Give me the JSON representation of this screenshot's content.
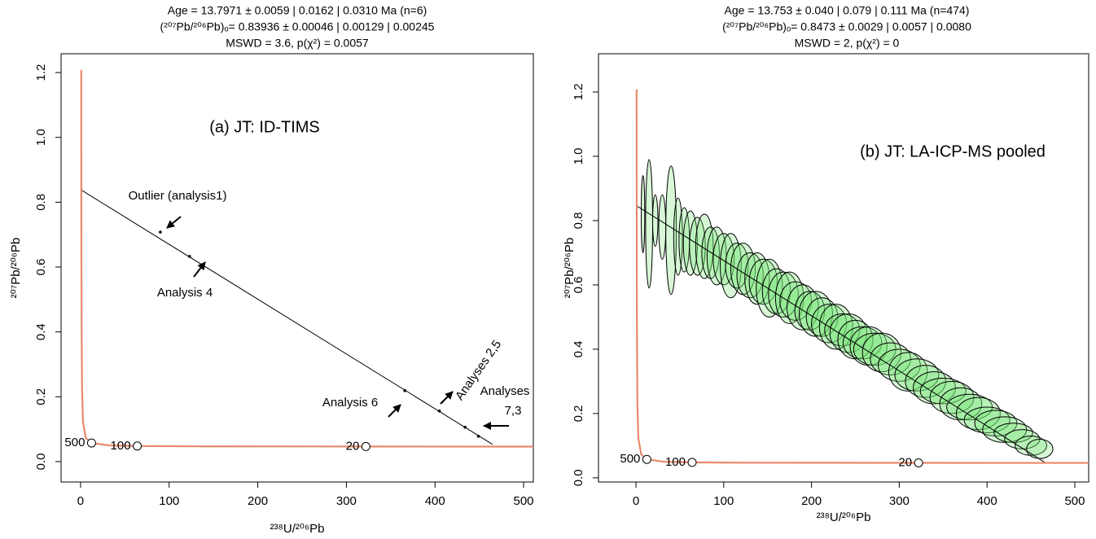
{
  "chart_data": [
    {
      "type": "concordia",
      "title": [
        "Age = 13.7971 ± 0.0059 | 0.0162 | 0.0310 Ma (n=6)",
        "(²⁰⁷Pb/²⁰⁶Pb)ₒ= 0.83936 ± 0.00046 | 0.00129 | 0.00245",
        "MSWD = 3.6, p(χ²) = 0.0057"
      ],
      "label": "(a) JT: ID-TIMS",
      "x_label": "²³⁸U/²⁰⁶Pb",
      "y_label": "²⁰⁷Pb/²⁰⁶Pb",
      "xlim": [
        -22,
        511
      ],
      "ylim": [
        -0.063,
        1.258
      ],
      "xticks": [
        0,
        100,
        200,
        300,
        400,
        500
      ],
      "yticks": [
        {
          "value": 0,
          "label": "0.0"
        },
        {
          "value": 0.2,
          "label": "0.2"
        },
        {
          "value": 0.4,
          "label": "0.4"
        },
        {
          "value": 0.6,
          "label": "0.6"
        },
        {
          "value": 0.8,
          "label": "0.8"
        },
        {
          "value": 1,
          "label": "1.0"
        },
        {
          "value": 1.2,
          "label": "1.2"
        }
      ],
      "concordia": {
        "color": "#e8896a",
        "x": [
          0.742,
          0.853,
          0.99,
          1.163,
          1.687,
          2.748,
          5.96,
          12.4,
          31.7,
          64,
          128.4,
          322,
          537
        ],
        "y": [
          1.208,
          0.846,
          0.597,
          0.425,
          0.2226,
          0.123,
          0.0726,
          0.0573,
          0.0501,
          0.048,
          0.047,
          0.0465,
          0.0463
        ]
      },
      "age_markers": {
        "ages": [
          500,
          100,
          20
        ],
        "x": [
          12.4,
          64,
          322
        ],
        "y": [
          0.0573,
          0.048,
          0.0465
        ]
      },
      "discordia": {
        "x": [
          0,
          465
        ],
        "y": [
          0.839,
          0.053
        ]
      },
      "points": {
        "x": [
          90,
          123,
          366,
          405,
          434,
          449
        ],
        "y": [
          0.708,
          0.633,
          0.219,
          0.156,
          0.106,
          0.078
        ]
      },
      "annotations": [
        "Outlier (analysis1)",
        "Analysis 4",
        "Analysis 6",
        "Analyses 2,5",
        "Analyses",
        "7,3"
      ]
    },
    {
      "type": "concordia",
      "title": [
        "Age = 13.753 ± 0.040 | 0.079 | 0.111 Ma (n=474)",
        "(²⁰⁷Pb/²⁰⁶Pb)ₒ= 0.8473 ± 0.0029 | 0.0057 | 0.0080",
        "MSWD = 2, p(χ²) = 0"
      ],
      "label": "(b) JT: LA-ICP-MS pooled",
      "x_label": "²³⁸U/²⁰⁶Pb",
      "y_label": "²⁰⁷Pb/²⁰⁶Pb",
      "xlim": [
        -42.7,
        515.8
      ],
      "ylim": [
        -0.013,
        1.319
      ],
      "xticks": [
        0,
        100,
        200,
        300,
        400,
        500
      ],
      "yticks": [
        {
          "value": 0,
          "label": "0.0"
        },
        {
          "value": 0.2,
          "label": "0.2"
        },
        {
          "value": 0.4,
          "label": "0.4"
        },
        {
          "value": 0.6,
          "label": "0.6"
        },
        {
          "value": 0.8,
          "label": "0.8"
        },
        {
          "value": 1,
          "label": "1.0"
        },
        {
          "value": 1.2,
          "label": "1.2"
        }
      ],
      "concordia": {
        "color": "#e8896a",
        "x": [
          0.742,
          0.853,
          0.99,
          1.163,
          1.687,
          2.748,
          5.96,
          12.4,
          31.7,
          64,
          128.4,
          322,
          537
        ],
        "y": [
          1.208,
          0.846,
          0.597,
          0.425,
          0.2226,
          0.123,
          0.0726,
          0.0573,
          0.0501,
          0.048,
          0.047,
          0.0465,
          0.0463
        ]
      },
      "age_markers": {
        "ages": [
          500,
          100,
          20
        ],
        "x": [
          12.4,
          64,
          322
        ],
        "y": [
          0.0573,
          0.048,
          0.0465
        ]
      },
      "discordia": {
        "x": [
          0,
          467
        ],
        "y": [
          0.8473,
          0.046
        ]
      },
      "ellipses": {
        "x": [
          8,
          15,
          22,
          30,
          40,
          48,
          55,
          62,
          70,
          78,
          85,
          92,
          100,
          108,
          115,
          122,
          130,
          138,
          145,
          152,
          160,
          168,
          175,
          182,
          190,
          198,
          205,
          212,
          220,
          228,
          235,
          242,
          250,
          258,
          265,
          272,
          280,
          290,
          300,
          310,
          320,
          330,
          340,
          350,
          360,
          370,
          380,
          390,
          400,
          410,
          420,
          430,
          440,
          450,
          460
        ],
        "y": [
          0.82,
          0.79,
          0.8,
          0.78,
          0.77,
          0.75,
          0.74,
          0.73,
          0.72,
          0.72,
          0.7,
          0.69,
          0.68,
          0.66,
          0.66,
          0.65,
          0.63,
          0.62,
          0.61,
          0.59,
          0.58,
          0.57,
          0.56,
          0.55,
          0.53,
          0.52,
          0.51,
          0.5,
          0.48,
          0.47,
          0.46,
          0.45,
          0.43,
          0.42,
          0.41,
          0.4,
          0.39,
          0.37,
          0.35,
          0.33,
          0.32,
          0.3,
          0.28,
          0.27,
          0.25,
          0.23,
          0.22,
          0.2,
          0.18,
          0.17,
          0.15,
          0.14,
          0.12,
          0.1,
          0.09
        ],
        "x_err": [
          2,
          4,
          3,
          4,
          6,
          5,
          6,
          8,
          9,
          10,
          10,
          11,
          12,
          12,
          13,
          14,
          15,
          14,
          16,
          15,
          16,
          17,
          16,
          18,
          18,
          17,
          19,
          18,
          20,
          19,
          20,
          21,
          20,
          22,
          21,
          24,
          22,
          23,
          24,
          22,
          25,
          23,
          24,
          26,
          25,
          24,
          26,
          25,
          26,
          24,
          25,
          22,
          20,
          18,
          15
        ],
        "y_err": [
          0.12,
          0.2,
          0.08,
          0.1,
          0.2,
          0.12,
          0.1,
          0.1,
          0.09,
          0.1,
          0.08,
          0.09,
          0.08,
          0.1,
          0.07,
          0.08,
          0.07,
          0.08,
          0.07,
          0.09,
          0.07,
          0.07,
          0.08,
          0.06,
          0.07,
          0.06,
          0.07,
          0.06,
          0.06,
          0.07,
          0.05,
          0.06,
          0.06,
          0.05,
          0.06,
          0.05,
          0.06,
          0.05,
          0.05,
          0.06,
          0.05,
          0.05,
          0.05,
          0.04,
          0.05,
          0.05,
          0.04,
          0.05,
          0.04,
          0.04,
          0.04,
          0.03,
          0.03,
          0.03,
          0.03
        ]
      }
    }
  ]
}
